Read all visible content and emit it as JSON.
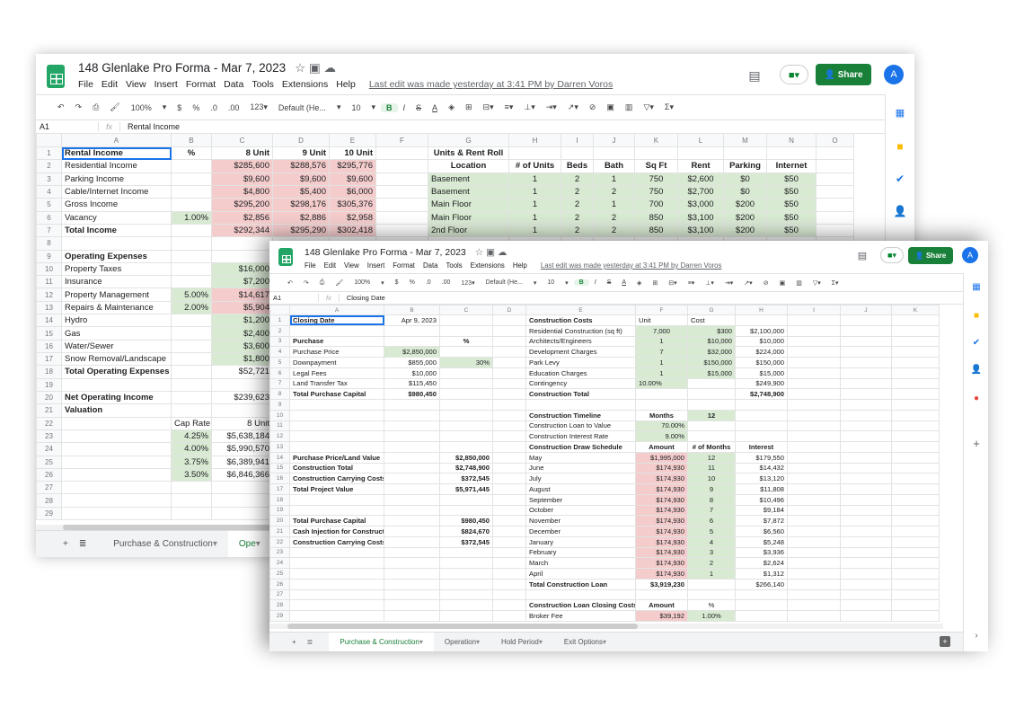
{
  "app": {
    "title": "148 Glenlake Pro Forma - Mar 7, 2023",
    "last_edit": "Last edit was made yesterday at 3:41 PM by Darren Voros",
    "share_label": "Share",
    "avatar_letter": "A",
    "menu": [
      "File",
      "Edit",
      "View",
      "Insert",
      "Format",
      "Data",
      "Tools",
      "Extensions",
      "Help"
    ],
    "toolbar": [
      "undo-icon",
      "redo-icon",
      "print-icon",
      "paint-format-icon",
      "100%",
      "▾",
      "$",
      "%",
      ".0",
      ".00",
      "123▾",
      "Default (He...",
      "▾",
      "10",
      "▾",
      "B",
      "I",
      "S",
      "A",
      "fill-color-icon",
      "borders-icon",
      "merge-icon",
      "align-icon",
      "valign-icon",
      "wrap-icon",
      "rotate-icon",
      "link-icon",
      "comment-icon",
      "chart-icon",
      "filter-icon",
      "functions-icon"
    ],
    "accent": "#188038",
    "green_fill": "#d9ead3",
    "red_fill": "#f4cccc"
  },
  "back": {
    "name_box": "A1",
    "formula": "Rental Income",
    "tabs": [
      "Purchase & Construction",
      "Ope"
    ],
    "active_tab": 1,
    "columns": [
      "A",
      "B",
      "C",
      "D",
      "E",
      "F",
      "G",
      "H",
      "I",
      "J",
      "K",
      "L",
      "M",
      "N",
      "O"
    ],
    "rows": [
      {
        "A": [
          "Rental Income",
          "b l sel"
        ],
        "B": [
          "%",
          "b c"
        ],
        "C": [
          "8 Unit",
          "b"
        ],
        "D": [
          "9 Unit",
          "b"
        ],
        "E": [
          "10 Unit",
          "b"
        ],
        "G": [
          "Units & Rent Roll",
          "b c"
        ]
      },
      {
        "A": [
          "Residential Income",
          "l"
        ],
        "C": [
          "$285,600",
          "r"
        ],
        "D": [
          "$288,576",
          "r"
        ],
        "E": [
          "$295,776",
          "r"
        ],
        "G": [
          "Location",
          "b c"
        ],
        "H": [
          "# of Units",
          "b c"
        ],
        "I": [
          "Beds",
          "b c"
        ],
        "J": [
          "Bath",
          "b c"
        ],
        "K": [
          "Sq Ft",
          "b c"
        ],
        "L": [
          "Rent",
          "b c"
        ],
        "M": [
          "Parking",
          "b c"
        ],
        "N": [
          "Internet",
          "b c"
        ]
      },
      {
        "A": [
          "Parking Income",
          "l"
        ],
        "C": [
          "$9,600",
          "r"
        ],
        "D": [
          "$9,600",
          "r"
        ],
        "E": [
          "$9,600",
          "r"
        ],
        "G": [
          "Basement",
          "g l"
        ],
        "H": [
          "1",
          "g c"
        ],
        "I": [
          "2",
          "g c"
        ],
        "J": [
          "1",
          "g c"
        ],
        "K": [
          "750",
          "g c"
        ],
        "L": [
          "$2,600",
          "g c"
        ],
        "M": [
          "$0",
          "g c"
        ],
        "N": [
          "$50",
          "g c"
        ]
      },
      {
        "A": [
          "Cable/Internet Income",
          "l"
        ],
        "C": [
          "$4,800",
          "r"
        ],
        "D": [
          "$5,400",
          "r"
        ],
        "E": [
          "$6,000",
          "r"
        ],
        "G": [
          "Basement",
          "g l"
        ],
        "H": [
          "1",
          "g c"
        ],
        "I": [
          "2",
          "g c"
        ],
        "J": [
          "2",
          "g c"
        ],
        "K": [
          "750",
          "g c"
        ],
        "L": [
          "$2,700",
          "g c"
        ],
        "M": [
          "$0",
          "g c"
        ],
        "N": [
          "$50",
          "g c"
        ]
      },
      {
        "A": [
          "Gross Income",
          "l"
        ],
        "C": [
          "$295,200",
          "r"
        ],
        "D": [
          "$298,176",
          "r"
        ],
        "E": [
          "$305,376",
          "r"
        ],
        "G": [
          "Main Floor",
          "g l"
        ],
        "H": [
          "1",
          "g c"
        ],
        "I": [
          "2",
          "g c"
        ],
        "J": [
          "1",
          "g c"
        ],
        "K": [
          "700",
          "g c"
        ],
        "L": [
          "$3,000",
          "g c"
        ],
        "M": [
          "$200",
          "g c"
        ],
        "N": [
          "$50",
          "g c"
        ]
      },
      {
        "A": [
          "Vacancy",
          "l"
        ],
        "B": [
          "1.00%",
          "g"
        ],
        "C": [
          "$2,856",
          "r"
        ],
        "D": [
          "$2,886",
          "r"
        ],
        "E": [
          "$2,958",
          "r"
        ],
        "G": [
          "Main Floor",
          "g l"
        ],
        "H": [
          "1",
          "g c"
        ],
        "I": [
          "2",
          "g c"
        ],
        "J": [
          "2",
          "g c"
        ],
        "K": [
          "850",
          "g c"
        ],
        "L": [
          "$3,100",
          "g c"
        ],
        "M": [
          "$200",
          "g c"
        ],
        "N": [
          "$50",
          "g c"
        ]
      },
      {
        "A": [
          "Total Income",
          "b l"
        ],
        "C": [
          "$292,344",
          "r"
        ],
        "D": [
          "$295,290",
          "r"
        ],
        "E": [
          "$302,418",
          "r"
        ],
        "G": [
          "2nd Floor",
          "g l"
        ],
        "H": [
          "1",
          "g c"
        ],
        "I": [
          "2",
          "g c"
        ],
        "J": [
          "2",
          "g c"
        ],
        "K": [
          "850",
          "g c"
        ],
        "L": [
          "$3,100",
          "g c"
        ],
        "M": [
          "$200",
          "g c"
        ],
        "N": [
          "$50",
          "g c"
        ]
      },
      {},
      {
        "A": [
          "Operating Expenses",
          "b l"
        ]
      },
      {
        "A": [
          "Property Taxes",
          "l"
        ],
        "C": [
          "$16,000",
          "g"
        ]
      },
      {
        "A": [
          "Insurance",
          "l"
        ],
        "C": [
          "$7,200",
          "g"
        ]
      },
      {
        "A": [
          "Property Management",
          "l"
        ],
        "B": [
          "5.00%",
          "g"
        ],
        "C": [
          "$14,617",
          "r"
        ]
      },
      {
        "A": [
          "Repairs & Maintenance",
          "l"
        ],
        "B": [
          "2.00%",
          "g"
        ],
        "C": [
          "$5,904",
          "r"
        ]
      },
      {
        "A": [
          "Hydro",
          "l"
        ],
        "C": [
          "$1,200",
          "g"
        ]
      },
      {
        "A": [
          "Gas",
          "l"
        ],
        "C": [
          "$2,400",
          "g"
        ]
      },
      {
        "A": [
          "Water/Sewer",
          "l"
        ],
        "C": [
          "$3,600",
          "g"
        ]
      },
      {
        "A": [
          "Snow Removal/Landscape",
          "l"
        ],
        "C": [
          "$1,800",
          "g"
        ]
      },
      {
        "A": [
          "Total Operating Expenses",
          "b l"
        ],
        "C": [
          "$52,721",
          ""
        ]
      },
      {},
      {
        "A": [
          "Net Operating Income",
          "b l"
        ],
        "C": [
          "$239,623",
          ""
        ]
      },
      {
        "A": [
          "Valuation",
          "b l"
        ]
      },
      {
        "B": [
          "Cap Rate",
          "c"
        ],
        "C": [
          "8 Unit",
          ""
        ]
      },
      {
        "B": [
          "4.25%",
          "g"
        ],
        "C": [
          "$5,638,184",
          ""
        ]
      },
      {
        "B": [
          "4.00%",
          "g"
        ],
        "C": [
          "$5,990,570",
          ""
        ]
      },
      {
        "B": [
          "3.75%",
          "g"
        ],
        "C": [
          "$6,389,941",
          ""
        ]
      },
      {
        "B": [
          "3.50%",
          "g"
        ],
        "C": [
          "$6,846,366",
          ""
        ]
      },
      {},
      {},
      {}
    ]
  },
  "front": {
    "name_box": "A1",
    "formula": "Closing Date",
    "tabs": [
      "Purchase & Construction",
      "Operation",
      "Hold Period",
      "Exit Options"
    ],
    "active_tab": 0,
    "columns": [
      "A",
      "B",
      "C",
      "D",
      "E",
      "F",
      "G",
      "H",
      "I",
      "J",
      "K"
    ],
    "rows": [
      {
        "A": [
          "Closing Date",
          "b l sel"
        ],
        "B": [
          "Apr 9, 2023",
          ""
        ],
        "E": [
          "Construction Costs",
          "b l"
        ],
        "F": [
          "Unit",
          "l"
        ],
        "G": [
          "Cost",
          "l"
        ]
      },
      {
        "E": [
          "Residential Construction (sq ft)",
          "l"
        ],
        "F": [
          "7,000",
          "g c"
        ],
        "G": [
          "$300",
          "g"
        ],
        "H": [
          "$2,100,000",
          ""
        ]
      },
      {
        "A": [
          "Purchase",
          "b l"
        ],
        "C": [
          "%",
          "b c"
        ],
        "E": [
          "Architects/Engineers",
          "l"
        ],
        "F": [
          "1",
          "g c"
        ],
        "G": [
          "$10,000",
          "g"
        ],
        "H": [
          "$10,000",
          ""
        ]
      },
      {
        "A": [
          "Purchase Price",
          "l"
        ],
        "B": [
          "$2,850,000",
          "g"
        ],
        "E": [
          "Development Charges",
          "l"
        ],
        "F": [
          "7",
          "g c"
        ],
        "G": [
          "$32,000",
          "g"
        ],
        "H": [
          "$224,000",
          ""
        ]
      },
      {
        "A": [
          "Downpayment",
          "l"
        ],
        "B": [
          "$855,000",
          ""
        ],
        "C": [
          "30%",
          "g"
        ],
        "E": [
          "Park Levy",
          "l"
        ],
        "F": [
          "1",
          "g c"
        ],
        "G": [
          "$150,000",
          "g"
        ],
        "H": [
          "$150,000",
          ""
        ]
      },
      {
        "A": [
          "Legal Fees",
          "l"
        ],
        "B": [
          "$10,000",
          ""
        ],
        "E": [
          "Education Charges",
          "l"
        ],
        "F": [
          "1",
          "g c"
        ],
        "G": [
          "$15,000",
          "g"
        ],
        "H": [
          "$15,000",
          ""
        ]
      },
      {
        "A": [
          "Land Transfer Tax",
          "l"
        ],
        "B": [
          "$115,450",
          ""
        ],
        "E": [
          "Contingency",
          "l"
        ],
        "F": [
          "10.00%",
          "g l"
        ],
        "H": [
          "$249,900",
          ""
        ]
      },
      {
        "A": [
          "Total Purchase Capital",
          "b l"
        ],
        "B": [
          "$980,450",
          "b"
        ],
        "E": [
          "Construction Total",
          "b l"
        ],
        "H": [
          "$2,748,900",
          "b"
        ]
      },
      {},
      {
        "E": [
          "Construction Timeline",
          "b l"
        ],
        "F": [
          "Months",
          "b c"
        ],
        "G": [
          "12",
          "b c g"
        ]
      },
      {
        "E": [
          "Construction Loan to Value",
          "l"
        ],
        "F": [
          "70.00%",
          "g"
        ]
      },
      {
        "E": [
          "Construction Interest Rate",
          "l"
        ],
        "F": [
          "9.00%",
          "g"
        ]
      },
      {
        "E": [
          "Construction Draw Schedule",
          "b l"
        ],
        "F": [
          "Amount",
          "b c"
        ],
        "G": [
          "# of Months",
          "b c"
        ],
        "H": [
          "Interest",
          "b c"
        ]
      },
      {
        "A": [
          "Purchase Price/Land Value",
          "b l"
        ],
        "C": [
          "$2,850,000",
          "b"
        ],
        "E": [
          "May",
          "l"
        ],
        "F": [
          "$1,995,000",
          "r"
        ],
        "G": [
          "12",
          "g c"
        ],
        "H": [
          "$179,550",
          ""
        ]
      },
      {
        "A": [
          "Construction Total",
          "b l"
        ],
        "C": [
          "$2,748,900",
          "b"
        ],
        "E": [
          "June",
          "l"
        ],
        "F": [
          "$174,930",
          "r"
        ],
        "G": [
          "11",
          "g c"
        ],
        "H": [
          "$14,432",
          ""
        ]
      },
      {
        "A": [
          "Construction Carrying Costs",
          "b l"
        ],
        "C": [
          "$372,545",
          "b"
        ],
        "E": [
          "July",
          "l"
        ],
        "F": [
          "$174,930",
          "r"
        ],
        "G": [
          "10",
          "g c"
        ],
        "H": [
          "$13,120",
          ""
        ]
      },
      {
        "A": [
          "Total Project Value",
          "b l"
        ],
        "C": [
          "$5,971,445",
          "b"
        ],
        "E": [
          "August",
          "l"
        ],
        "F": [
          "$174,930",
          "r"
        ],
        "G": [
          "9",
          "g c"
        ],
        "H": [
          "$11,808",
          ""
        ]
      },
      {
        "E": [
          "September",
          "l"
        ],
        "F": [
          "$174,930",
          "r"
        ],
        "G": [
          "8",
          "g c"
        ],
        "H": [
          "$10,496",
          ""
        ]
      },
      {
        "E": [
          "October",
          "l"
        ],
        "F": [
          "$174,930",
          "r"
        ],
        "G": [
          "7",
          "g c"
        ],
        "H": [
          "$9,184",
          ""
        ]
      },
      {
        "A": [
          "Total Purchase Capital",
          "b l"
        ],
        "C": [
          "$980,450",
          "b"
        ],
        "E": [
          "November",
          "l"
        ],
        "F": [
          "$174,930",
          "r"
        ],
        "G": [
          "6",
          "g c"
        ],
        "H": [
          "$7,872",
          ""
        ]
      },
      {
        "A": [
          "Cash Injection for Construction",
          "b l"
        ],
        "C": [
          "$824,670",
          "b"
        ],
        "E": [
          "December",
          "l"
        ],
        "F": [
          "$174,930",
          "r"
        ],
        "G": [
          "5",
          "g c"
        ],
        "H": [
          "$6,560",
          ""
        ]
      },
      {
        "A": [
          "Construction Carrying Costs",
          "b l"
        ],
        "C": [
          "$372,545",
          "b"
        ],
        "E": [
          "January",
          "l"
        ],
        "F": [
          "$174,930",
          "r"
        ],
        "G": [
          "4",
          "g c"
        ],
        "H": [
          "$5,248",
          ""
        ]
      },
      {
        "E": [
          "February",
          "l"
        ],
        "F": [
          "$174,930",
          "r"
        ],
        "G": [
          "3",
          "g c"
        ],
        "H": [
          "$3,936",
          ""
        ]
      },
      {
        "E": [
          "March",
          "l"
        ],
        "F": [
          "$174,930",
          "r"
        ],
        "G": [
          "2",
          "g c"
        ],
        "H": [
          "$2,624",
          ""
        ]
      },
      {
        "E": [
          "April",
          "l"
        ],
        "F": [
          "$174,930",
          "r"
        ],
        "G": [
          "1",
          "g c"
        ],
        "H": [
          "$1,312",
          ""
        ]
      },
      {
        "E": [
          "Total Construction Loan",
          "b l"
        ],
        "F": [
          "$3,919,230",
          "b"
        ],
        "H": [
          "$266,140",
          ""
        ]
      },
      {},
      {
        "E": [
          "Construction Loan Closing Costs",
          "b l"
        ],
        "F": [
          "Amount",
          "b c"
        ],
        "G": [
          "%",
          "c"
        ]
      },
      {
        "E": [
          "Broker Fee",
          "l"
        ],
        "F": [
          "$39,192",
          "r"
        ],
        "G": [
          "1.00%",
          "g c"
        ]
      }
    ]
  }
}
